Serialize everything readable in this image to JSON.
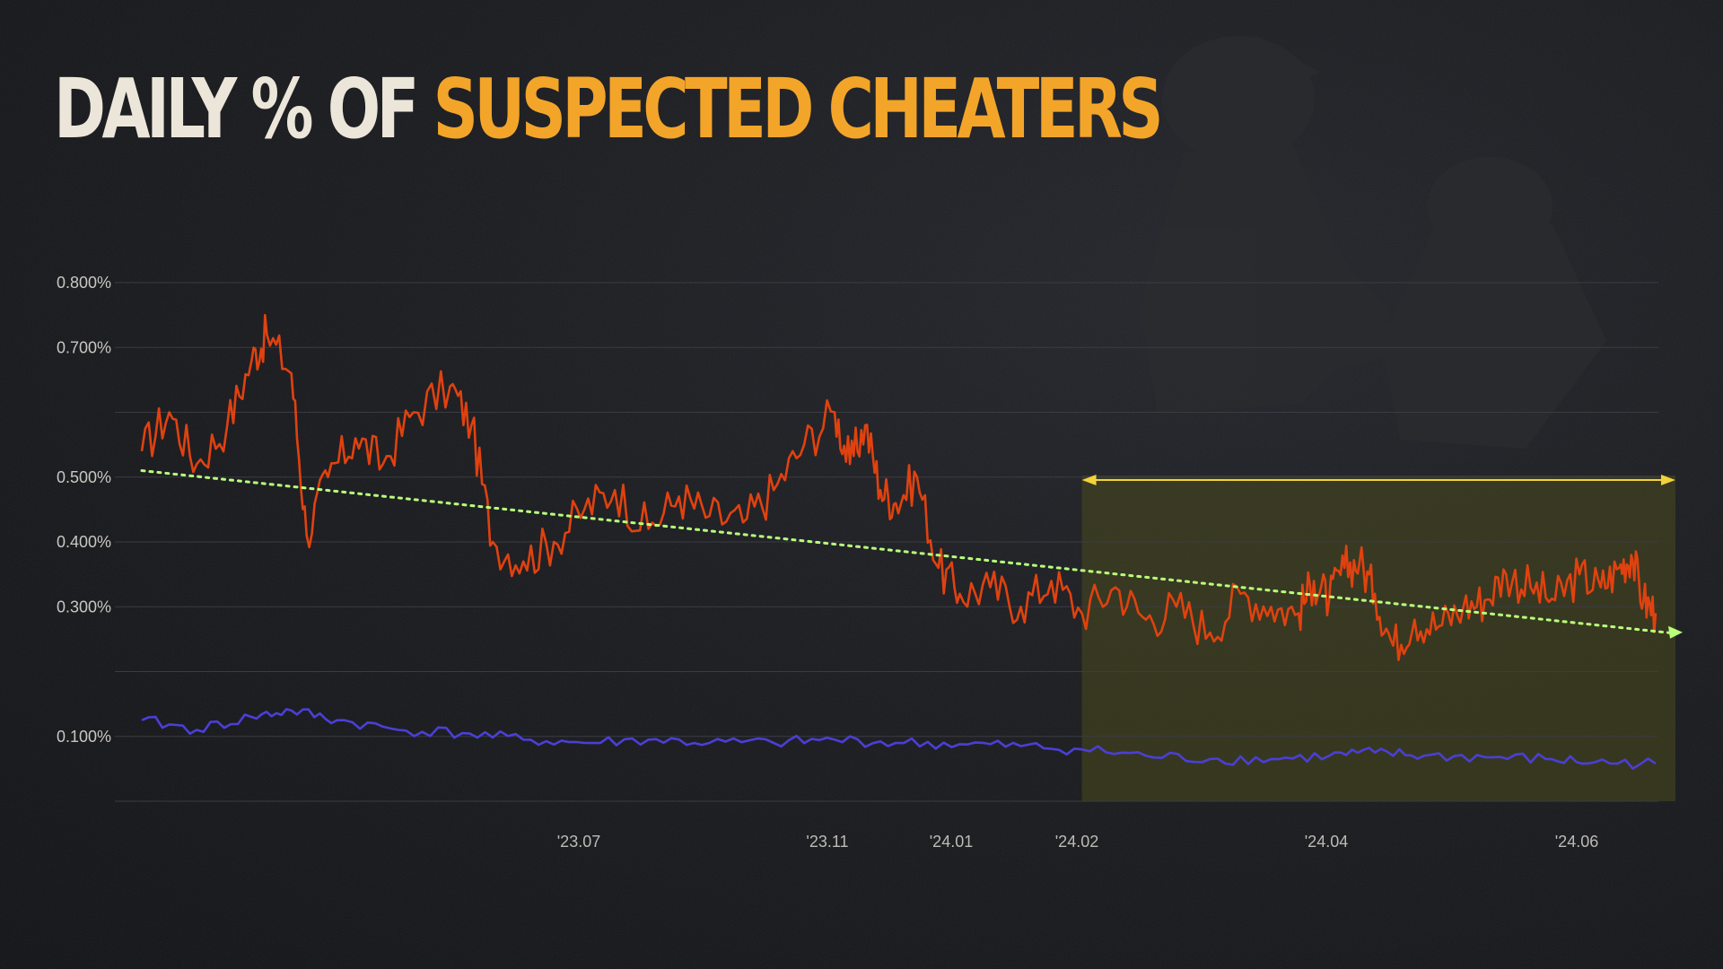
{
  "title": {
    "part1": "DAILY % OF",
    "part2": "SUSPECTED CHEATERS"
  },
  "colors": {
    "title_white": "#ece6da",
    "title_orange": "#f3a52a",
    "series_orange": "#e0420f",
    "series_purple": "#4b3fd6",
    "trend_green": "#b8ff7a",
    "range_arrow": "#f2d23c",
    "highlight": "#4b4a1e"
  },
  "chart_data": {
    "type": "line",
    "title": "DAILY % OF SUSPECTED CHEATERS",
    "xlabel": "",
    "ylabel": "",
    "ylim": [
      0,
      0.8
    ],
    "y_ticks": [
      {
        "value": 0.8,
        "label": "0.800%"
      },
      {
        "value": 0.7,
        "label": "0.700%"
      },
      {
        "value": 0.5,
        "label": "0.500%"
      },
      {
        "value": 0.4,
        "label": "0.400%"
      },
      {
        "value": 0.3,
        "label": "0.300%"
      },
      {
        "value": 0.1,
        "label": "0.100%"
      }
    ],
    "x_ticks": [
      "'23.07",
      "'23.11",
      "'24.01",
      "'24.02",
      "'24.04",
      "'24.06"
    ],
    "grid": true,
    "x_start": "2023-02-20",
    "x_end": "2024-06-30",
    "series": [
      {
        "points": [
          [
            "2023-02-20",
            0.54
          ],
          [
            "2023-03-01",
            0.6
          ],
          [
            "2023-03-10",
            0.52
          ],
          [
            "2023-03-20",
            0.58
          ],
          [
            "2023-03-28",
            0.68
          ],
          [
            "2023-04-02",
            0.72
          ],
          [
            "2023-04-10",
            0.66
          ],
          [
            "2023-04-15",
            0.41
          ],
          [
            "2023-04-22",
            0.5
          ],
          [
            "2023-05-01",
            0.56
          ],
          [
            "2023-05-10",
            0.52
          ],
          [
            "2023-05-20",
            0.6
          ],
          [
            "2023-06-01",
            0.64
          ],
          [
            "2023-06-08",
            0.58
          ],
          [
            "2023-06-15",
            0.4
          ],
          [
            "2023-06-25",
            0.37
          ],
          [
            "2023-07-05",
            0.4
          ],
          [
            "2023-07-15",
            0.45
          ],
          [
            "2023-07-25",
            0.48
          ],
          [
            "2023-08-05",
            0.42
          ],
          [
            "2023-08-15",
            0.47
          ],
          [
            "2023-08-25",
            0.44
          ],
          [
            "2023-09-05",
            0.43
          ],
          [
            "2023-09-15",
            0.48
          ],
          [
            "2023-09-25",
            0.55
          ],
          [
            "2023-10-05",
            0.6
          ],
          [
            "2023-10-10",
            0.52
          ],
          [
            "2023-10-15",
            0.58
          ],
          [
            "2023-10-20",
            0.48
          ],
          [
            "2023-10-25",
            0.46
          ],
          [
            "2023-11-01",
            0.5
          ],
          [
            "2023-11-08",
            0.36
          ],
          [
            "2023-11-15",
            0.32
          ],
          [
            "2023-11-25",
            0.33
          ],
          [
            "2023-12-05",
            0.3
          ],
          [
            "2023-12-15",
            0.34
          ],
          [
            "2023-12-25",
            0.29
          ],
          [
            "2024-01-05",
            0.33
          ],
          [
            "2024-01-15",
            0.28
          ],
          [
            "2024-01-25",
            0.3
          ],
          [
            "2024-02-05",
            0.26
          ],
          [
            "2024-02-15",
            0.32
          ],
          [
            "2024-02-25",
            0.3
          ],
          [
            "2024-03-05",
            0.29
          ],
          [
            "2024-03-10",
            0.34
          ],
          [
            "2024-03-15",
            0.31
          ],
          [
            "2024-03-20",
            0.36
          ],
          [
            "2024-03-25",
            0.37
          ],
          [
            "2024-03-30",
            0.32
          ],
          [
            "2024-04-05",
            0.24
          ],
          [
            "2024-04-12",
            0.28
          ],
          [
            "2024-04-20",
            0.27
          ],
          [
            "2024-04-28",
            0.3
          ],
          [
            "2024-05-05",
            0.31
          ],
          [
            "2024-05-12",
            0.35
          ],
          [
            "2024-05-20",
            0.33
          ],
          [
            "2024-05-28",
            0.31
          ],
          [
            "2024-06-05",
            0.35
          ],
          [
            "2024-06-12",
            0.33
          ],
          [
            "2024-06-18",
            0.36
          ],
          [
            "2024-06-22",
            0.38
          ],
          [
            "2024-06-26",
            0.31
          ],
          [
            "2024-06-30",
            0.29
          ]
        ],
        "dates_approximate": true
      },
      {
        "points": [
          [
            "2023-02-20",
            0.125
          ],
          [
            "2023-03-10",
            0.11
          ],
          [
            "2023-03-28",
            0.13
          ],
          [
            "2023-04-10",
            0.14
          ],
          [
            "2023-04-25",
            0.125
          ],
          [
            "2023-05-15",
            0.11
          ],
          [
            "2023-06-05",
            0.105
          ],
          [
            "2023-06-25",
            0.095
          ],
          [
            "2023-07-15",
            0.09
          ],
          [
            "2023-08-05",
            0.095
          ],
          [
            "2023-08-25",
            0.09
          ],
          [
            "2023-09-15",
            0.09
          ],
          [
            "2023-10-05",
            0.095
          ],
          [
            "2023-10-25",
            0.09
          ],
          [
            "2023-11-15",
            0.088
          ],
          [
            "2023-12-05",
            0.085
          ],
          [
            "2023-12-25",
            0.08
          ],
          [
            "2024-01-15",
            0.07
          ],
          [
            "2024-02-05",
            0.065
          ],
          [
            "2024-02-25",
            0.065
          ],
          [
            "2024-03-15",
            0.07
          ],
          [
            "2024-03-30",
            0.075
          ],
          [
            "2024-04-15",
            0.07
          ],
          [
            "2024-05-05",
            0.068
          ],
          [
            "2024-05-25",
            0.065
          ],
          [
            "2024-06-10",
            0.06
          ],
          [
            "2024-06-30",
            0.058
          ]
        ]
      }
    ],
    "trendline": {
      "from": [
        "2023-02-20",
        0.51
      ],
      "to": [
        "2024-06-30",
        0.255
      ]
    },
    "highlight_range": {
      "from": "2023-12-25",
      "to": "2024-06-30"
    }
  }
}
